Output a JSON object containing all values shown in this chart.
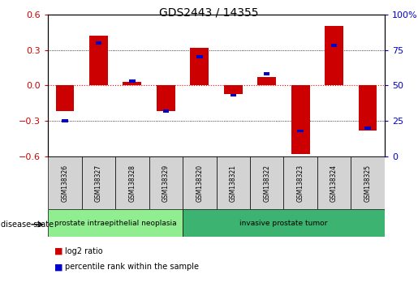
{
  "title": "GDS2443 / 14355",
  "samples": [
    "GSM138326",
    "GSM138327",
    "GSM138328",
    "GSM138329",
    "GSM138320",
    "GSM138321",
    "GSM138322",
    "GSM138323",
    "GSM138324",
    "GSM138325"
  ],
  "log2_ratio": [
    -0.22,
    0.42,
    0.03,
    -0.22,
    0.32,
    -0.07,
    0.07,
    -0.58,
    0.5,
    -0.38
  ],
  "percentile_rank": [
    25,
    80,
    53,
    32,
    70,
    43,
    58,
    18,
    78,
    20
  ],
  "groups": [
    {
      "label": "prostate intraepithelial neoplasia",
      "start": 0,
      "end": 4,
      "color": "#90ee90"
    },
    {
      "label": "invasive prostate tumor",
      "start": 4,
      "end": 10,
      "color": "#3cb371"
    }
  ],
  "ylim_left": [
    -0.6,
    0.6
  ],
  "ylim_right": [
    0,
    100
  ],
  "yticks_left": [
    -0.6,
    -0.3,
    0.0,
    0.3,
    0.6
  ],
  "yticks_right": [
    0,
    25,
    50,
    75,
    100
  ],
  "bar_color_red": "#cc0000",
  "bar_color_blue": "#0000cc",
  "zero_line_color": "#ff0000",
  "legend_red_label": "log2 ratio",
  "legend_blue_label": "percentile rank within the sample",
  "disease_state_label": "disease state",
  "red_bar_width": 0.55,
  "blue_bar_width": 0.18
}
